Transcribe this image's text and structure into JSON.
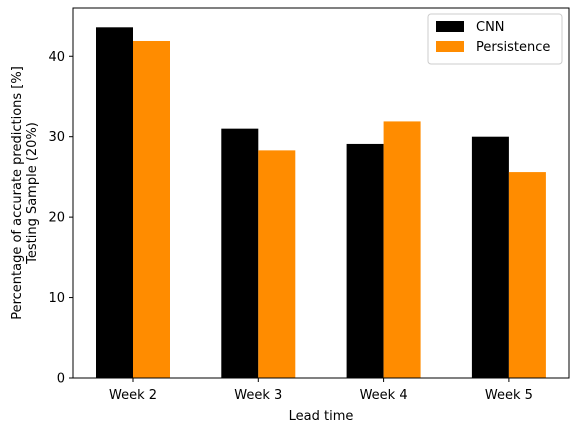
{
  "chart_data": {
    "type": "bar",
    "title": "",
    "xlabel": "Lead time",
    "ylabel_lines": [
      "Percentage of accurate predictions [%]",
      "Testing Sample (20%)"
    ],
    "categories": [
      "Week 2",
      "Week 3",
      "Week 4",
      "Week 5"
    ],
    "series": [
      {
        "name": "CNN",
        "color": "#000000",
        "values": [
          43.6,
          31.0,
          29.1,
          30.0
        ]
      },
      {
        "name": "Persistence",
        "color": "#ff8c00",
        "values": [
          41.9,
          28.3,
          31.9,
          25.6
        ]
      }
    ],
    "ylim": [
      0,
      46
    ],
    "yticks": [
      0,
      10,
      20,
      30,
      40
    ],
    "grid": false,
    "legend_position": "top-right"
  }
}
